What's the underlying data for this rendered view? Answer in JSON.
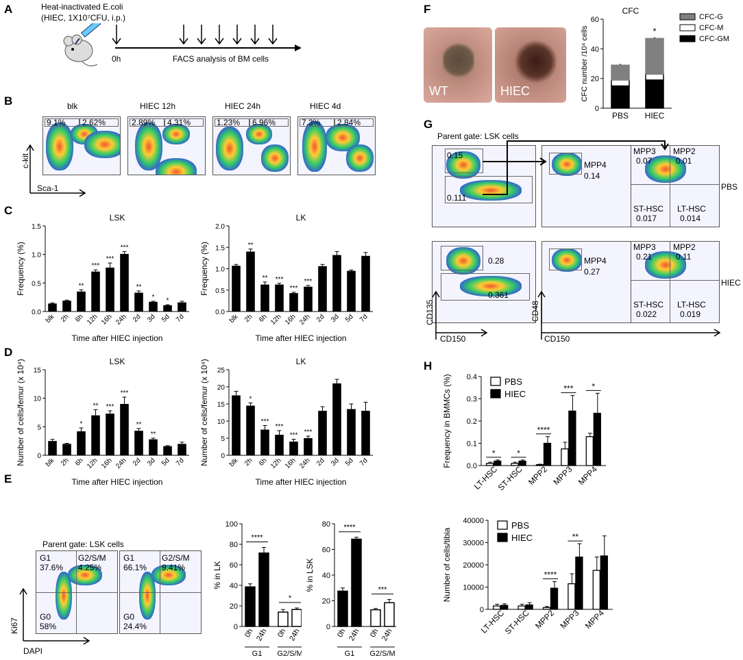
{
  "panels": {
    "A": "A",
    "B": "B",
    "C": "C",
    "D": "D",
    "E": "E",
    "F": "F",
    "G": "G",
    "H": "H"
  },
  "panelA": {
    "line1": "Heat-inactivated E.coli",
    "line2": "(HIEC, 1X10⁷CFU, i.p.)",
    "start": "0h",
    "caption": "FACS analysis of BM cells"
  },
  "panelB": {
    "plots": [
      {
        "title": "blk",
        "left": "9.1%",
        "right": "2.62%"
      },
      {
        "title": "HIEC 12h",
        "left": "2.89%",
        "right": "4.31%"
      },
      {
        "title": "HIEC 24h",
        "left": "1.23%",
        "right": "6.96%"
      },
      {
        "title": "HIEC 4d",
        "left": "7.3%",
        "right": "2.84%"
      }
    ],
    "yaxis": "c-kit",
    "xaxis": "Sca-1"
  },
  "panelE": {
    "gate": "Parent gate: LSK cells",
    "plots": [
      {
        "g1": "G1",
        "g1v": "37.6%",
        "g2": "G2/S/M",
        "g2v": "4.25%",
        "g0": "G0",
        "g0v": "58%"
      },
      {
        "g1": "G1",
        "g1v": "66.1%",
        "g2": "G2/S/M",
        "g2v": "9.41%",
        "g0": "G0",
        "g0v": "24.4%"
      }
    ],
    "yaxis": "Ki67",
    "xaxis": "DAPI"
  },
  "panelF": {
    "photo1": "WT",
    "photo2": "HIEC"
  },
  "panelG": {
    "gate": "Parent gate: LSK cells",
    "pbs": {
      "g1": "0.15",
      "g2": "0.111",
      "mpp4": "MPP4",
      "mpp4v": "0.14",
      "q": [
        {
          "n": "MPP3",
          "v": "0.07"
        },
        {
          "n": "MPP2",
          "v": "0.01"
        },
        {
          "n": "ST-HSC",
          "v": "0.017"
        },
        {
          "n": "LT-HSC",
          "v": "0.014"
        }
      ],
      "label": "PBS"
    },
    "hiec": {
      "g1": "0.28",
      "g2": "0.361",
      "mpp4": "MPP4",
      "mpp4v": "0.27",
      "q": [
        {
          "n": "MPP3",
          "v": "0.21"
        },
        {
          "n": "MPP2",
          "v": "0.11"
        },
        {
          "n": "ST-HSC",
          "v": "0.022"
        },
        {
          "n": "LT-HSC",
          "v": "0.019"
        }
      ],
      "label": "HIEC"
    },
    "y1": "CD135",
    "x1": "CD150",
    "y2": "CD48",
    "x2": "CD150"
  },
  "chart_data": [
    {
      "id": "C-LSK",
      "type": "bar",
      "title": "LSK",
      "ylabel": "Frequency (%)",
      "xlabel": "Time after HIEC injection",
      "categories": [
        "blk",
        "2h",
        "6h",
        "12h",
        "16h",
        "24h",
        "2d",
        "3d",
        "5d",
        "7d"
      ],
      "values": [
        0.14,
        0.19,
        0.35,
        0.7,
        0.77,
        1.01,
        0.33,
        0.17,
        0.11,
        0.16
      ],
      "errors": [
        0.01,
        0.01,
        0.03,
        0.03,
        0.08,
        0.04,
        0.03,
        0.01,
        0.01,
        0.02
      ],
      "sig": [
        "",
        "",
        "**",
        "***",
        "***",
        "***",
        "**",
        "*",
        "*",
        ""
      ],
      "ylim": [
        0,
        1.5
      ],
      "yticks": [
        0.0,
        0.5,
        1.0,
        1.5
      ],
      "ytickLabels": [
        "0.0",
        "0.5",
        "1.0",
        "1.5"
      ]
    },
    {
      "id": "C-LK",
      "type": "bar",
      "title": "LK",
      "ylabel": "Frequency (%)",
      "xlabel": "Time after HIEC injection",
      "categories": [
        "blk",
        "2h",
        "6h",
        "12h",
        "16h",
        "24h",
        "2d",
        "3d",
        "5d",
        "7d"
      ],
      "values": [
        1.07,
        1.4,
        0.63,
        0.63,
        0.43,
        0.58,
        1.06,
        1.32,
        0.95,
        1.3
      ],
      "errors": [
        0.03,
        0.06,
        0.06,
        0.03,
        0.02,
        0.03,
        0.04,
        0.08,
        0.02,
        0.08
      ],
      "sig": [
        "",
        "**",
        "**",
        "***",
        "***",
        "***",
        "",
        "",
        "",
        ""
      ],
      "ylim": [
        0,
        2.0
      ],
      "yticks": [
        0.0,
        0.5,
        1.0,
        1.5,
        2.0
      ],
      "ytickLabels": [
        "0.0",
        "0.5",
        "1.0",
        "1.5",
        "2.0"
      ]
    },
    {
      "id": "D-LSK",
      "type": "bar",
      "title": "LSK",
      "ylabel": "Number of cells/femur (x 10⁴)",
      "xlabel": "Time after HIEC injection",
      "categories": [
        "blk",
        "2h",
        "6h",
        "12h",
        "16h",
        "24h",
        "2d",
        "3d",
        "5d",
        "7d"
      ],
      "values": [
        2.5,
        2.0,
        4.2,
        7.0,
        7.3,
        9.0,
        4.3,
        2.8,
        1.6,
        2.0
      ],
      "errors": [
        0.3,
        0.1,
        0.6,
        1.0,
        0.5,
        1.2,
        0.4,
        0.2,
        0.1,
        0.3
      ],
      "sig": [
        "",
        "",
        "*",
        "**",
        "***",
        "***",
        "**",
        "**",
        "",
        ""
      ],
      "ylim": [
        0,
        15
      ],
      "yticks": [
        0,
        5,
        10,
        15
      ],
      "ytickLabels": [
        "0",
        "5",
        "10",
        "15"
      ]
    },
    {
      "id": "D-LK",
      "type": "bar",
      "title": "LK",
      "ylabel": "Number of cells/femur (x 10⁴)",
      "xlabel": "Time after HIEC injection",
      "categories": [
        "blk",
        "2h",
        "6h",
        "12h",
        "16h",
        "24h",
        "2d",
        "3d",
        "5d",
        "7d"
      ],
      "values": [
        17.5,
        14.5,
        7.5,
        6.0,
        4.0,
        5.0,
        13.0,
        21.0,
        13.5,
        13.0
      ],
      "errors": [
        1.2,
        0.8,
        1.2,
        1.2,
        0.7,
        0.6,
        1.2,
        1.2,
        1.5,
        2.5
      ],
      "sig": [
        "",
        "*",
        "***",
        "***",
        "***",
        "***",
        "",
        "",
        "",
        ""
      ],
      "ylim": [
        0,
        25
      ],
      "yticks": [
        0,
        5,
        10,
        15,
        20,
        25
      ],
      "ytickLabels": [
        "0",
        "5",
        "10",
        "15",
        "20",
        "25"
      ]
    },
    {
      "id": "E-LK",
      "type": "bar",
      "ylabel": "% in LK",
      "groups": [
        "G1",
        "G2/S/M"
      ],
      "categories": [
        "0h",
        "24h",
        "0h",
        "24h"
      ],
      "values": [
        38.5,
        71.5,
        14.0,
        16.5
      ],
      "errors": [
        3.0,
        5.5,
        2.5,
        1.5
      ],
      "fills": [
        "black",
        "black",
        "white",
        "white"
      ],
      "sig": [
        {
          "pair": [
            0,
            1
          ],
          "label": "****"
        },
        {
          "pair": [
            2,
            3
          ],
          "label": "*"
        }
      ],
      "ylim": [
        0,
        100
      ],
      "yticks": [
        0,
        20,
        40,
        60,
        80,
        100
      ],
      "ytickLabels": [
        "0",
        "20",
        "40",
        "60",
        "80",
        "100"
      ]
    },
    {
      "id": "E-LSK",
      "type": "bar",
      "ylabel": "% in LSK",
      "groups": [
        "G1",
        "G2/S/M"
      ],
      "categories": [
        "0h",
        "24h",
        "0h",
        "24h"
      ],
      "values": [
        27.5,
        68.0,
        13.0,
        18.5
      ],
      "errors": [
        2.5,
        1.5,
        1.0,
        2.5
      ],
      "fills": [
        "black",
        "black",
        "white",
        "white"
      ],
      "sig": [
        {
          "pair": [
            0,
            1
          ],
          "label": "****"
        },
        {
          "pair": [
            2,
            3
          ],
          "label": "***"
        }
      ],
      "ylim": [
        0,
        80
      ],
      "yticks": [
        0,
        20,
        40,
        60,
        80
      ],
      "ytickLabels": [
        "0",
        "20",
        "40",
        "60",
        "80"
      ]
    },
    {
      "id": "F-CFC",
      "type": "bar",
      "stacked": true,
      "title": "CFC",
      "ylabel": "CFC number /10⁴ cells",
      "categories": [
        "PBS",
        "HIEC"
      ],
      "series": [
        {
          "name": "CFC-GM",
          "values": [
            15,
            19
          ],
          "color": "#000000"
        },
        {
          "name": "CFC-M",
          "values": [
            4,
            4
          ],
          "color": "#ffffff"
        },
        {
          "name": "CFC-G",
          "values": [
            10,
            24
          ],
          "color": "#808080"
        }
      ],
      "legend": [
        "CFC-G",
        "CFC-M",
        "CFC-GM"
      ],
      "sig": [
        "",
        "*"
      ],
      "ylim": [
        0,
        60
      ],
      "yticks": [
        0,
        20,
        40,
        60
      ],
      "ytickLabels": [
        "0",
        "20",
        "40",
        "60"
      ]
    },
    {
      "id": "H-freq",
      "type": "bar",
      "ylabel": "Frequency in BMMCs (%)",
      "categories": [
        "LT-HSC",
        "ST-HSC",
        "MPP2",
        "MPP3",
        "MPP4"
      ],
      "series": [
        {
          "name": "PBS",
          "values": [
            0.01,
            0.01,
            0.004,
            0.075,
            0.13
          ],
          "errors": [
            0.005,
            0.005,
            0.002,
            0.03,
            0.015
          ]
        },
        {
          "name": "HIEC",
          "values": [
            0.02,
            0.02,
            0.1,
            0.245,
            0.235
          ],
          "errors": [
            0.005,
            0.005,
            0.03,
            0.07,
            0.09
          ]
        }
      ],
      "sig": [
        "*",
        "*",
        "****",
        "***",
        "*"
      ],
      "ylim": [
        0,
        0.4
      ],
      "yticks": [
        0.0,
        0.1,
        0.2,
        0.3,
        0.4
      ],
      "ytickLabels": [
        "0.0",
        "0.1",
        "0.2",
        "0.3",
        "0.4"
      ]
    },
    {
      "id": "H-num",
      "type": "bar",
      "ylabel": "Number of cells/tibia",
      "categories": [
        "LT-HSC",
        "ST-HSC",
        "MPP2",
        "MPP3",
        "MPP4"
      ],
      "series": [
        {
          "name": "PBS",
          "values": [
            1500,
            1500,
            800,
            11500,
            17500
          ],
          "errors": [
            800,
            800,
            500,
            4500,
            6000
          ]
        },
        {
          "name": "HIEC",
          "values": [
            1800,
            2000,
            9500,
            23500,
            24000
          ],
          "errors": [
            700,
            1000,
            3000,
            6000,
            9000
          ]
        }
      ],
      "sig": [
        "",
        "",
        "****",
        "**",
        ""
      ],
      "ylim": [
        0,
        40000
      ],
      "yticks": [
        0,
        10000,
        20000,
        30000,
        40000
      ],
      "ytickLabels": [
        "0",
        "10000",
        "20000",
        "30000",
        "40000"
      ]
    }
  ]
}
